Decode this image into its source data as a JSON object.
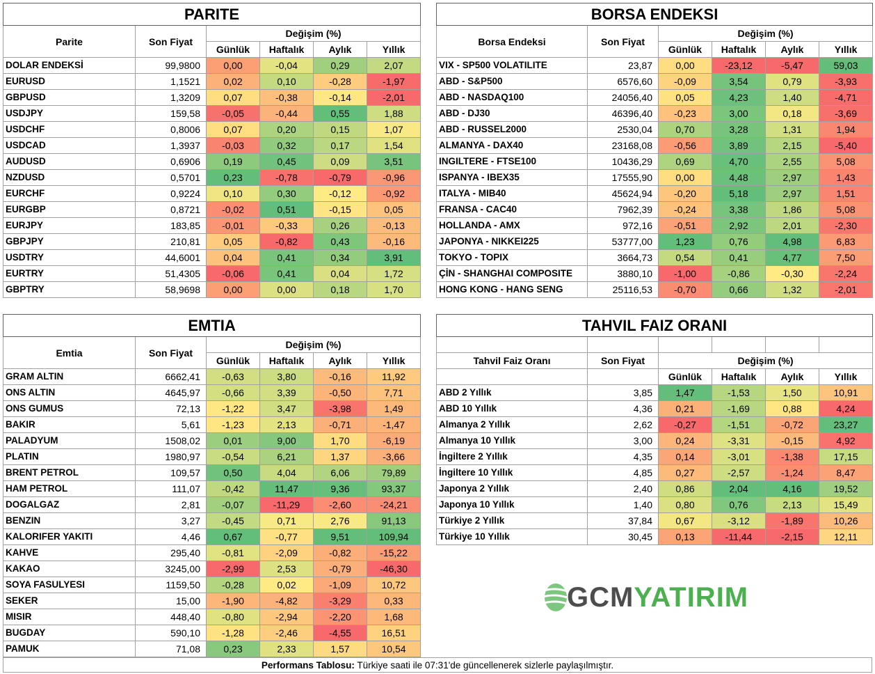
{
  "parite": {
    "title": "PARITE",
    "col_name": "Parite",
    "col_price": "Son Fiyat",
    "col_change": "Değişim (%)",
    "periods": [
      "Günlük",
      "Haftalık",
      "Aylık",
      "Yıllık"
    ],
    "rows": [
      {
        "name": "DOLAR ENDEKSİ",
        "price": "99,9800",
        "changes": [
          "0,00",
          "-0,04",
          "0,29",
          "2,07"
        ]
      },
      {
        "name": "EURUSD",
        "price": "1,1521",
        "changes": [
          "0,02",
          "0,10",
          "-0,28",
          "-1,97"
        ]
      },
      {
        "name": "GBPUSD",
        "price": "1,3209",
        "changes": [
          "0,07",
          "-0,38",
          "-0,14",
          "-2,01"
        ]
      },
      {
        "name": "USDJPY",
        "price": "159,58",
        "changes": [
          "-0,05",
          "-0,44",
          "0,55",
          "1,88"
        ]
      },
      {
        "name": "USDCHF",
        "price": "0,8006",
        "changes": [
          "0,07",
          "0,20",
          "0,15",
          "1,07"
        ]
      },
      {
        "name": "USDCAD",
        "price": "1,3937",
        "changes": [
          "-0,03",
          "0,32",
          "0,17",
          "1,54"
        ]
      },
      {
        "name": "AUDUSD",
        "price": "0,6906",
        "changes": [
          "0,19",
          "0,45",
          "0,09",
          "3,51"
        ]
      },
      {
        "name": "NZDUSD",
        "price": "0,5701",
        "changes": [
          "0,23",
          "-0,78",
          "-0,79",
          "-0,96"
        ]
      },
      {
        "name": "EURCHF",
        "price": "0,9224",
        "changes": [
          "0,10",
          "0,30",
          "-0,12",
          "-0,92"
        ]
      },
      {
        "name": "EURGBP",
        "price": "0,8721",
        "changes": [
          "-0,02",
          "0,51",
          "-0,15",
          "0,05"
        ]
      },
      {
        "name": "EURJPY",
        "price": "183,85",
        "changes": [
          "-0,01",
          "-0,33",
          "0,26",
          "-0,13"
        ]
      },
      {
        "name": "GBPJPY",
        "price": "210,81",
        "changes": [
          "0,05",
          "-0,82",
          "0,43",
          "-0,16"
        ]
      },
      {
        "name": "USDTRY",
        "price": "44,6001",
        "changes": [
          "0,04",
          "0,41",
          "0,34",
          "3,91"
        ]
      },
      {
        "name": "EURTRY",
        "price": "51,4305",
        "changes": [
          "-0,06",
          "0,41",
          "0,04",
          "1,72"
        ]
      },
      {
        "name": "GBPTRY",
        "price": "58,9698",
        "changes": [
          "0,00",
          "0,00",
          "0,18",
          "1,70"
        ]
      }
    ]
  },
  "borsa": {
    "title": "BORSA ENDEKSI",
    "col_name": "Borsa Endeksi",
    "col_price": "Son Fiyat",
    "col_change": "Değişim (%)",
    "periods": [
      "Günlük",
      "Haftalık",
      "Aylık",
      "Yıllık"
    ],
    "rows": [
      {
        "name": "VIX  - SP500 VOLATILITE",
        "price": "23,87",
        "changes": [
          "0,00",
          "-23,12",
          "-5,47",
          "59,03"
        ]
      },
      {
        "name": "ABD - S&P500",
        "price": "6576,60",
        "changes": [
          "-0,09",
          "3,54",
          "0,79",
          "-3,93"
        ]
      },
      {
        "name": "ABD - NASDAQ100",
        "price": "24056,40",
        "changes": [
          "0,05",
          "4,23",
          "1,40",
          "-4,71"
        ]
      },
      {
        "name": "ABD - DJ30",
        "price": "46396,40",
        "changes": [
          "-0,23",
          "3,00",
          "0,18",
          "-3,69"
        ]
      },
      {
        "name": "ABD - RUSSEL2000",
        "price": "2530,04",
        "changes": [
          "0,70",
          "3,28",
          "1,31",
          "1,94"
        ]
      },
      {
        "name": "ALMANYA - DAX40",
        "price": "23168,08",
        "changes": [
          "-0,56",
          "3,89",
          "2,15",
          "-5,40"
        ]
      },
      {
        "name": "INGILTERE - FTSE100",
        "price": "10436,29",
        "changes": [
          "0,69",
          "4,70",
          "2,55",
          "5,08"
        ]
      },
      {
        "name": "ISPANYA - IBEX35",
        "price": "17555,90",
        "changes": [
          "0,00",
          "4,48",
          "2,97",
          "1,43"
        ]
      },
      {
        "name": "ITALYA - MIB40",
        "price": "45624,94",
        "changes": [
          "-0,20",
          "5,18",
          "2,97",
          "1,51"
        ]
      },
      {
        "name": "FRANSA - CAC40",
        "price": "7962,39",
        "changes": [
          "-0,24",
          "3,38",
          "1,86",
          "5,08"
        ]
      },
      {
        "name": "HOLLANDA - AMX",
        "price": "972,16",
        "changes": [
          "-0,51",
          "2,92",
          "2,01",
          "-2,30"
        ]
      },
      {
        "name": "JAPONYA - NIKKEI225",
        "price": "53777,00",
        "changes": [
          "1,23",
          "0,76",
          "4,98",
          "6,83"
        ]
      },
      {
        "name": "TOKYO - TOPIX",
        "price": "3664,73",
        "changes": [
          "0,54",
          "0,41",
          "4,77",
          "7,50"
        ]
      },
      {
        "name": "ÇİN - SHANGHAI COMPOSITE",
        "price": "3880,10",
        "changes": [
          "-1,00",
          "-0,86",
          "-0,30",
          "-2,24"
        ]
      },
      {
        "name": "HONG KONG - HANG SENG",
        "price": "25116,53",
        "changes": [
          "-0,70",
          "0,66",
          "1,32",
          "-2,01"
        ]
      }
    ]
  },
  "emtia": {
    "title": "EMTIA",
    "col_name": "Emtia",
    "col_price": "Son Fiyat",
    "col_change": "Değişim (%)",
    "periods": [
      "Günlük",
      "Haftalık",
      "Aylık",
      "Yıllık"
    ],
    "rows": [
      {
        "name": "GRAM ALTIN",
        "price": "6662,41",
        "changes": [
          "-0,63",
          "3,80",
          "-0,16",
          "11,92"
        ]
      },
      {
        "name": "ONS ALTIN",
        "price": "4645,97",
        "changes": [
          "-0,66",
          "3,39",
          "-0,50",
          "7,71"
        ]
      },
      {
        "name": "ONS GUMUS",
        "price": "72,13",
        "changes": [
          "-1,22",
          "3,47",
          "-3,98",
          "1,49"
        ]
      },
      {
        "name": "BAKIR",
        "price": "5,61",
        "changes": [
          "-1,23",
          "2,13",
          "-0,71",
          "-1,47"
        ]
      },
      {
        "name": "PALADYUM",
        "price": "1508,02",
        "changes": [
          "0,01",
          "9,00",
          "1,70",
          "-6,19"
        ]
      },
      {
        "name": "PLATIN",
        "price": "1980,97",
        "changes": [
          "-0,54",
          "6,21",
          "1,37",
          "-3,66"
        ]
      },
      {
        "name": "BRENT PETROL",
        "price": "109,57",
        "changes": [
          "0,50",
          "4,04",
          "6,06",
          "79,89"
        ]
      },
      {
        "name": "HAM PETROL",
        "price": "111,07",
        "changes": [
          "-0,42",
          "11,47",
          "9,36",
          "93,37"
        ]
      },
      {
        "name": "DOGALGAZ",
        "price": "2,81",
        "changes": [
          "-0,07",
          "-11,29",
          "-2,60",
          "-24,21"
        ]
      },
      {
        "name": "BENZIN",
        "price": "3,27",
        "changes": [
          "-0,45",
          "0,71",
          "2,76",
          "91,13"
        ]
      },
      {
        "name": "KALORIFER YAKITI",
        "price": "4,46",
        "changes": [
          "0,67",
          "-0,77",
          "9,51",
          "109,94"
        ]
      },
      {
        "name": "KAHVE",
        "price": "295,40",
        "changes": [
          "-0,81",
          "-2,09",
          "-0,82",
          "-15,22"
        ]
      },
      {
        "name": "KAKAO",
        "price": "3245,00",
        "changes": [
          "-2,99",
          "2,53",
          "-0,79",
          "-46,30"
        ]
      },
      {
        "name": "SOYA FASULYESI",
        "price": "1159,50",
        "changes": [
          "-0,28",
          "0,02",
          "-1,09",
          "10,72"
        ]
      },
      {
        "name": "SEKER",
        "price": "15,00",
        "changes": [
          "-1,90",
          "-4,82",
          "-3,29",
          "0,33"
        ]
      },
      {
        "name": "MISIR",
        "price": "448,40",
        "changes": [
          "-0,80",
          "-2,94",
          "-2,20",
          "1,68"
        ]
      },
      {
        "name": "BUGDAY",
        "price": "590,10",
        "changes": [
          "-1,28",
          "-2,46",
          "-4,55",
          "16,51"
        ]
      },
      {
        "name": "PAMUK",
        "price": "71,08",
        "changes": [
          "0,23",
          "2,33",
          "1,57",
          "10,54"
        ]
      }
    ]
  },
  "tahvil": {
    "title": "TAHVIL FAIZ ORANI",
    "col_name": "Tahvil Faiz Oranı",
    "col_price": "Son Fiyat",
    "col_change": "Değişim (%)",
    "periods": [
      "Günlük",
      "Haftalık",
      "Aylık",
      "Yıllık"
    ],
    "rows": [
      {
        "name": "ABD 2 Yıllık",
        "price": "3,85",
        "changes": [
          "1,47",
          "-1,53",
          "1,50",
          "10,91"
        ]
      },
      {
        "name": "ABD 10 Yıllık",
        "price": "4,36",
        "changes": [
          "0,21",
          "-1,69",
          "0,88",
          "4,24"
        ]
      },
      {
        "name": "Almanya 2 Yıllık",
        "price": "2,62",
        "changes": [
          "-0,27",
          "-1,51",
          "-0,72",
          "23,27"
        ]
      },
      {
        "name": "Almanya 10 Yıllık",
        "price": "3,00",
        "changes": [
          "0,24",
          "-3,31",
          "-0,15",
          "4,92"
        ]
      },
      {
        "name": "İngiltere 2 Yıllık",
        "price": "4,35",
        "changes": [
          "0,14",
          "-3,01",
          "-1,38",
          "17,15"
        ]
      },
      {
        "name": "İngiltere 10 Yıllık",
        "price": "4,85",
        "changes": [
          "0,27",
          "-2,57",
          "-1,24",
          "8,47"
        ]
      },
      {
        "name": "Japonya 2 Yıllık",
        "price": "2,40",
        "changes": [
          "0,86",
          "2,04",
          "4,16",
          "19,52"
        ]
      },
      {
        "name": "Japonya 10 Yıllık",
        "price": "1,40",
        "changes": [
          "0,80",
          "0,76",
          "2,13",
          "15,49"
        ]
      },
      {
        "name": "Türkiye 2 Yıllık",
        "price": "37,84",
        "changes": [
          "0,67",
          "-3,12",
          "-1,89",
          "10,26"
        ]
      },
      {
        "name": "Türkiye 10 Yıllık",
        "price": "30,45",
        "changes": [
          "0,13",
          "-11,44",
          "-2,15",
          "12,11"
        ]
      }
    ]
  },
  "logo": {
    "part1": "GCM",
    "part2": "YATIRIM"
  },
  "footer": {
    "label": "Performans Tablosu:",
    "text": " Türkiye saati ile 07:31'de güncellenerek sizlerle paylaşılmıştır."
  },
  "colors": {
    "red": "#f8696b",
    "yellow": "#ffeb84",
    "green": "#63be7b"
  }
}
